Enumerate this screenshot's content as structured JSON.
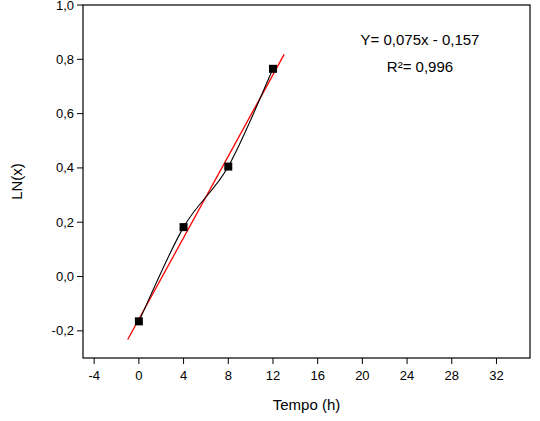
{
  "chart_data": {
    "type": "scatter",
    "x_label": "Tempo (h)",
    "y_label": "LN(x)",
    "annotations": [
      "Y= 0,075x - 0,157",
      "R²= 0,996"
    ],
    "xlim": [
      -5,
      35
    ],
    "xticks": [
      -4,
      0,
      4,
      8,
      12,
      16,
      20,
      24,
      28,
      32
    ],
    "ylim": [
      -0.3,
      1.0
    ],
    "yticks": [
      {
        "value": -0.2,
        "label": "-0,2"
      },
      {
        "value": 0.0,
        "label": "0,0"
      },
      {
        "value": 0.2,
        "label": "0,2"
      },
      {
        "value": 0.4,
        "label": "0,4"
      },
      {
        "value": 0.6,
        "label": "0,6"
      },
      {
        "value": 0.8,
        "label": "0,8"
      },
      {
        "value": 1.0,
        "label": "1,0"
      }
    ],
    "grid": false,
    "series": [
      {
        "type": "line",
        "color": "#000000",
        "marker": "square",
        "line_style": "smooth",
        "x": [
          0,
          4,
          8,
          12
        ],
        "values": [
          -0.165,
          0.182,
          0.405,
          0.765
        ]
      },
      {
        "type": "line",
        "color": "#ff0000",
        "marker": "none",
        "line_style": "solid",
        "x": [
          -1,
          13
        ],
        "values": [
          -0.232,
          0.818
        ]
      }
    ]
  }
}
